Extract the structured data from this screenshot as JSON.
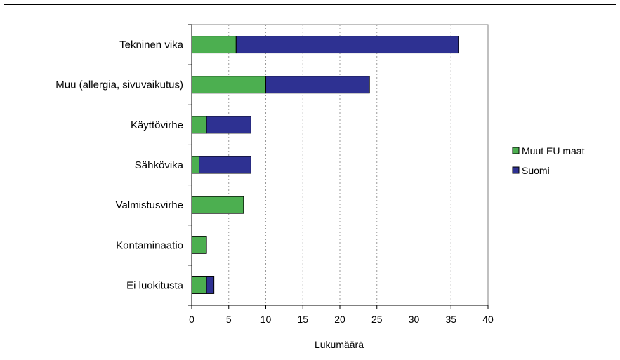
{
  "chart_data": {
    "type": "bar",
    "orientation": "horizontal",
    "stacked": true,
    "categories": [
      "Tekninen vika",
      "Muu (allergia, sivuvaikutus)",
      "Käyttövirhe",
      "Sähkövika",
      "Valmistusvirhe",
      "Kontaminaatio",
      "Ei luokitusta"
    ],
    "series": [
      {
        "name": "Muut EU maat",
        "color": "#4caf50",
        "values": [
          6,
          10,
          2,
          1,
          7,
          2,
          2
        ]
      },
      {
        "name": "Suomi",
        "color": "#2e3192",
        "values": [
          30,
          14,
          6,
          7,
          0,
          0,
          1
        ]
      }
    ],
    "xlabel": "Lukumäärä",
    "ylabel": "",
    "xlim": [
      0,
      40
    ],
    "xticks": [
      0,
      5,
      10,
      15,
      20,
      25,
      30,
      35,
      40
    ],
    "grid": "vertical dashed",
    "legend_position": "right"
  }
}
